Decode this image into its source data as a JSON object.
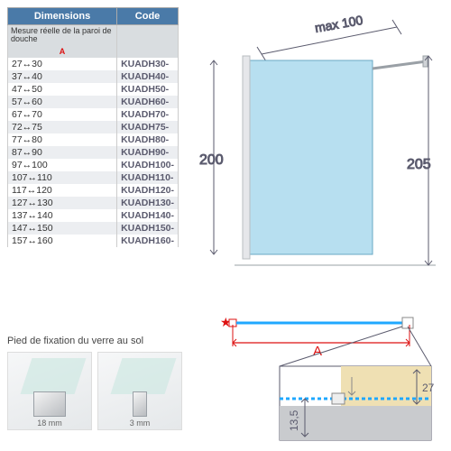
{
  "table": {
    "headers": [
      "Dimensions",
      "Code"
    ],
    "sub": "Mesure réelle de la paroi de douche",
    "dimLabel": "A",
    "rows": [
      {
        "dim": "27↔30",
        "code": "KUADH30-"
      },
      {
        "dim": "37↔40",
        "code": "KUADH40-"
      },
      {
        "dim": "47↔50",
        "code": "KUADH50-"
      },
      {
        "dim": "57↔60",
        "code": "KUADH60-"
      },
      {
        "dim": "67↔70",
        "code": "KUADH70-"
      },
      {
        "dim": "72↔75",
        "code": "KUADH75-"
      },
      {
        "dim": "77↔80",
        "code": "KUADH80-"
      },
      {
        "dim": "87↔90",
        "code": "KUADH90-"
      },
      {
        "dim": "97↔100",
        "code": "KUADH100-"
      },
      {
        "dim": "107↔110",
        "code": "KUADH110-"
      },
      {
        "dim": "117↔120",
        "code": "KUADH120-"
      },
      {
        "dim": "127↔130",
        "code": "KUADH130-"
      },
      {
        "dim": "137↔140",
        "code": "KUADH140-"
      },
      {
        "dim": "147↔150",
        "code": "KUADH150-"
      },
      {
        "dim": "157↔160",
        "code": "KUADH160-"
      }
    ]
  },
  "diagram": {
    "max_width_label": "max 100",
    "height_left": "200",
    "height_right": "205",
    "glass_color": "#b7dff0",
    "profile_color": "#d0d3d7",
    "line_color": "#5b5b6e"
  },
  "plan": {
    "dimA_label": "A",
    "dim27": "27",
    "dim135": "13,5",
    "wall_color": "#efe0b3",
    "floor_color": "#c9cbce",
    "glass_line": "#1fa8ff",
    "arrow_color": "#d11"
  },
  "foot": {
    "title": "Pied de fixation du verre au sol",
    "left_dim": "18 mm",
    "right_dim": "3 mm"
  }
}
